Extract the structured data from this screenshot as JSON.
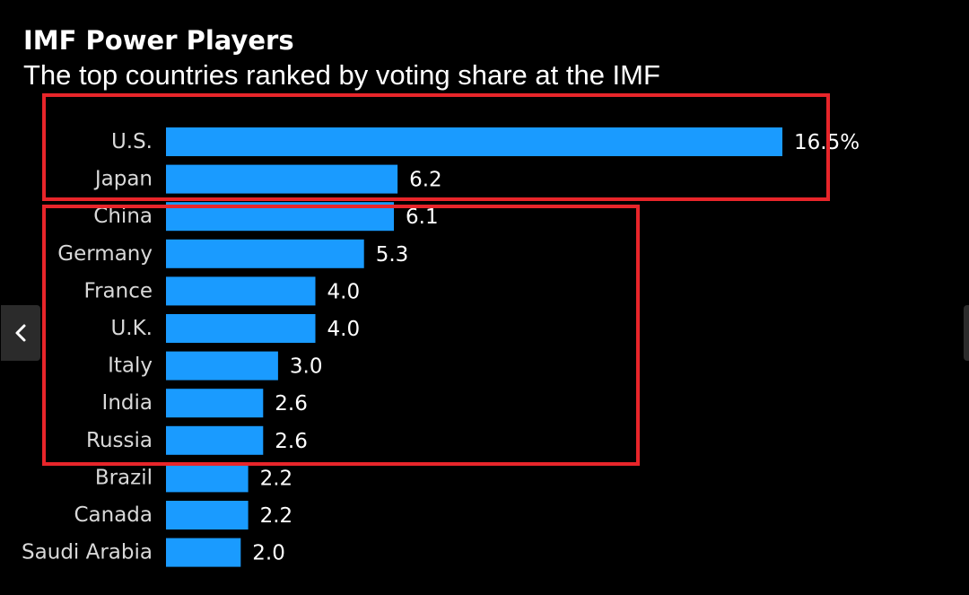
{
  "header": {
    "title": "IMF Power Players",
    "subtitle": "The top countries ranked by voting share at the IMF"
  },
  "colors": {
    "background": "#000000",
    "bar": "#1a9bff",
    "text": "#ffffff",
    "label": "#d9d9d9",
    "highlight": "#e8252a"
  },
  "chart_data": {
    "type": "bar",
    "orientation": "horizontal",
    "title": "IMF Power Players",
    "subtitle": "The top countries ranked by voting share at the IMF",
    "categories": [
      "U.S.",
      "Japan",
      "China",
      "Germany",
      "France",
      "U.K.",
      "Italy",
      "India",
      "Russia",
      "Brazil",
      "Canada",
      "Saudi Arabia"
    ],
    "values": [
      16.5,
      6.2,
      6.1,
      5.3,
      4.0,
      4.0,
      3.0,
      2.6,
      2.6,
      2.2,
      2.2,
      2.0
    ],
    "value_labels": [
      "16.5%",
      "6.2",
      "6.1",
      "5.3",
      "4.0",
      "4.0",
      "3.0",
      "2.6",
      "2.6",
      "2.2",
      "2.2",
      "2.0"
    ],
    "unit": "%",
    "xlabel": "",
    "ylabel": "",
    "xlim": [
      0,
      16.5
    ],
    "grid": false,
    "legend": "none",
    "highlight_groups": [
      {
        "name": "top-two",
        "from": 0,
        "to": 1
      },
      {
        "name": "next-seven",
        "from": 2,
        "to": 8
      }
    ]
  },
  "nav": {
    "prev_icon": "chevron-left-icon",
    "next_icon": "chevron-right-icon"
  }
}
